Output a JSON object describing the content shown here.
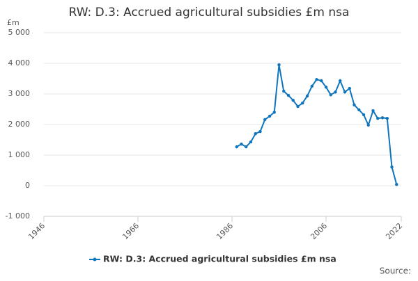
{
  "chart_data": {
    "type": "line",
    "title": "RW: D.3: Accrued agricultural subsidies £m nsa",
    "y_unit": "£m",
    "source": "Source:",
    "x": [
      1987,
      1988,
      1989,
      1990,
      1991,
      1992,
      1993,
      1994,
      1995,
      1996,
      1997,
      1998,
      1999,
      2000,
      2001,
      2002,
      2003,
      2004,
      2005,
      2006,
      2007,
      2008,
      2009,
      2010,
      2011,
      2012,
      2013,
      2014,
      2015,
      2016,
      2017,
      2018,
      2019,
      2020,
      2021
    ],
    "series": [
      {
        "name": "RW: D.3: Accrued agricultural subsidies £m nsa",
        "color": "#0f75bc",
        "values": [
          1270,
          1360,
          1270,
          1430,
          1700,
          1770,
          2160,
          2270,
          2400,
          3950,
          3090,
          2950,
          2790,
          2590,
          2700,
          2930,
          3250,
          3470,
          3430,
          3220,
          2970,
          3060,
          3430,
          3060,
          3180,
          2640,
          2480,
          2320,
          1980,
          2450,
          2200,
          2220,
          2200,
          610,
          40
        ]
      }
    ],
    "xlim": [
      1946,
      2022
    ],
    "xticks": [
      1946,
      1966,
      1986,
      2006,
      2022
    ],
    "ylim": [
      -1000,
      5000
    ],
    "yticks": [
      {
        "value": -1000,
        "label": "-1 000"
      },
      0,
      {
        "value": 1000,
        "label": "1 000"
      },
      {
        "value": 2000,
        "label": "2 000"
      },
      {
        "value": 3000,
        "label": "3 000"
      },
      {
        "value": 4000,
        "label": "4 000"
      },
      {
        "value": 5000,
        "label": "5 000"
      }
    ],
    "grid": true
  }
}
